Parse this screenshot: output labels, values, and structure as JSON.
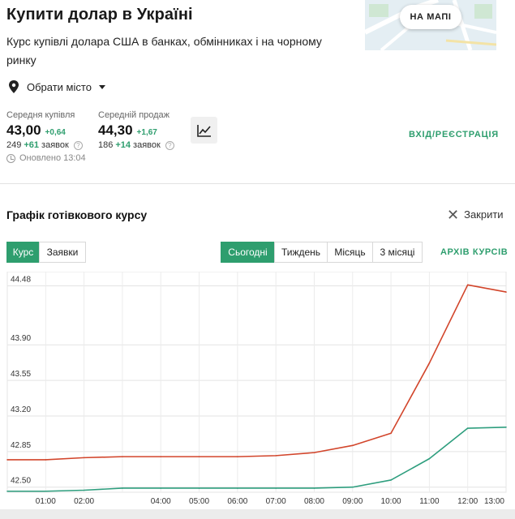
{
  "header": {
    "title": "Купити долар в Україні",
    "subtitle": "Курс купівлі долара США в банках, обмінниках і на чорному ринку",
    "map_button": "НА МАПІ"
  },
  "city_selector": {
    "label": "Обрати місто"
  },
  "stats": {
    "buy": {
      "label": "Середня купівля",
      "value": "43,00",
      "change": "+0,64",
      "count": "249",
      "count_change": "+61",
      "count_label": "заявок"
    },
    "sell": {
      "label": "Середній продаж",
      "value": "44,30",
      "change": "+1,67",
      "count": "186",
      "count_change": "+14",
      "count_label": "заявок"
    },
    "updated": "Оновлено 13:04"
  },
  "login": "ВХІД/РЕЄСТРАЦІЯ",
  "chart_section": {
    "title": "Графік готівкового курсу",
    "close_label": "Закрити",
    "view_tabs": [
      "Курс",
      "Заявки"
    ],
    "period_tabs": [
      "Сьогодні",
      "Тиждень",
      "Місяць",
      "3 місяці"
    ],
    "archive": "АРХІВ КУРСІВ"
  },
  "colors": {
    "accent": "#2e9e6e",
    "sell_line": "#d2452b",
    "buy_line": "#2e9e7e"
  },
  "chart_data": {
    "type": "line",
    "categories": [
      "00:00",
      "01:00",
      "02:00",
      "03:00",
      "04:00",
      "05:00",
      "06:00",
      "07:00",
      "08:00",
      "09:00",
      "10:00",
      "11:00",
      "12:00",
      "13:00"
    ],
    "tick_labels": [
      "01:00",
      "02:00",
      "04:00",
      "05:00",
      "06:00",
      "07:00",
      "08:00",
      "09:00",
      "10:00",
      "11:00",
      "12:00",
      "13:00"
    ],
    "yticks": [
      "42.50",
      "42.85",
      "43.20",
      "43.55",
      "43.90",
      "44.48"
    ],
    "ylim": [
      42.45,
      44.62
    ],
    "grid": true,
    "series": [
      {
        "color": "#d2452b",
        "values": [
          42.77,
          42.77,
          42.79,
          42.8,
          42.8,
          42.8,
          42.8,
          42.81,
          42.84,
          42.91,
          43.03,
          43.72,
          44.49,
          44.42
        ]
      },
      {
        "color": "#2e9e7e",
        "values": [
          42.46,
          42.46,
          42.47,
          42.49,
          42.49,
          42.49,
          42.49,
          42.49,
          42.49,
          42.5,
          42.57,
          42.78,
          43.08,
          43.09
        ]
      }
    ]
  }
}
